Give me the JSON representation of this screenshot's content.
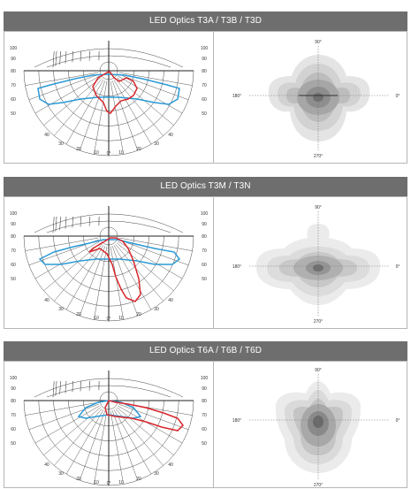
{
  "panels": [
    {
      "title": "LED Optics T3A / T3B / T3D",
      "iso_labels": {
        "top": "90°",
        "left": "180°",
        "right": "0°",
        "bottom": "270°"
      }
    },
    {
      "title": "LED Optics T3M / T3N",
      "iso_labels": {
        "top": "90°",
        "left": "180°",
        "right": "0°",
        "bottom": "270°"
      }
    },
    {
      "title": "LED Optics T6A / T6B / T6D",
      "iso_labels": {
        "top": "90°",
        "left": "180°",
        "right": "0°",
        "bottom": "270°"
      }
    }
  ],
  "polar_scale_labels": [
    "100",
    "90",
    "80",
    "70",
    "60",
    "50",
    "40",
    "30",
    "20",
    "10",
    "0°"
  ],
  "colors": {
    "header": "#6e6e6e",
    "curve_red": "#d9262b",
    "curve_blue": "#2b9ad6",
    "grid": "#444444",
    "contour_base": "#b0b0b0"
  }
}
